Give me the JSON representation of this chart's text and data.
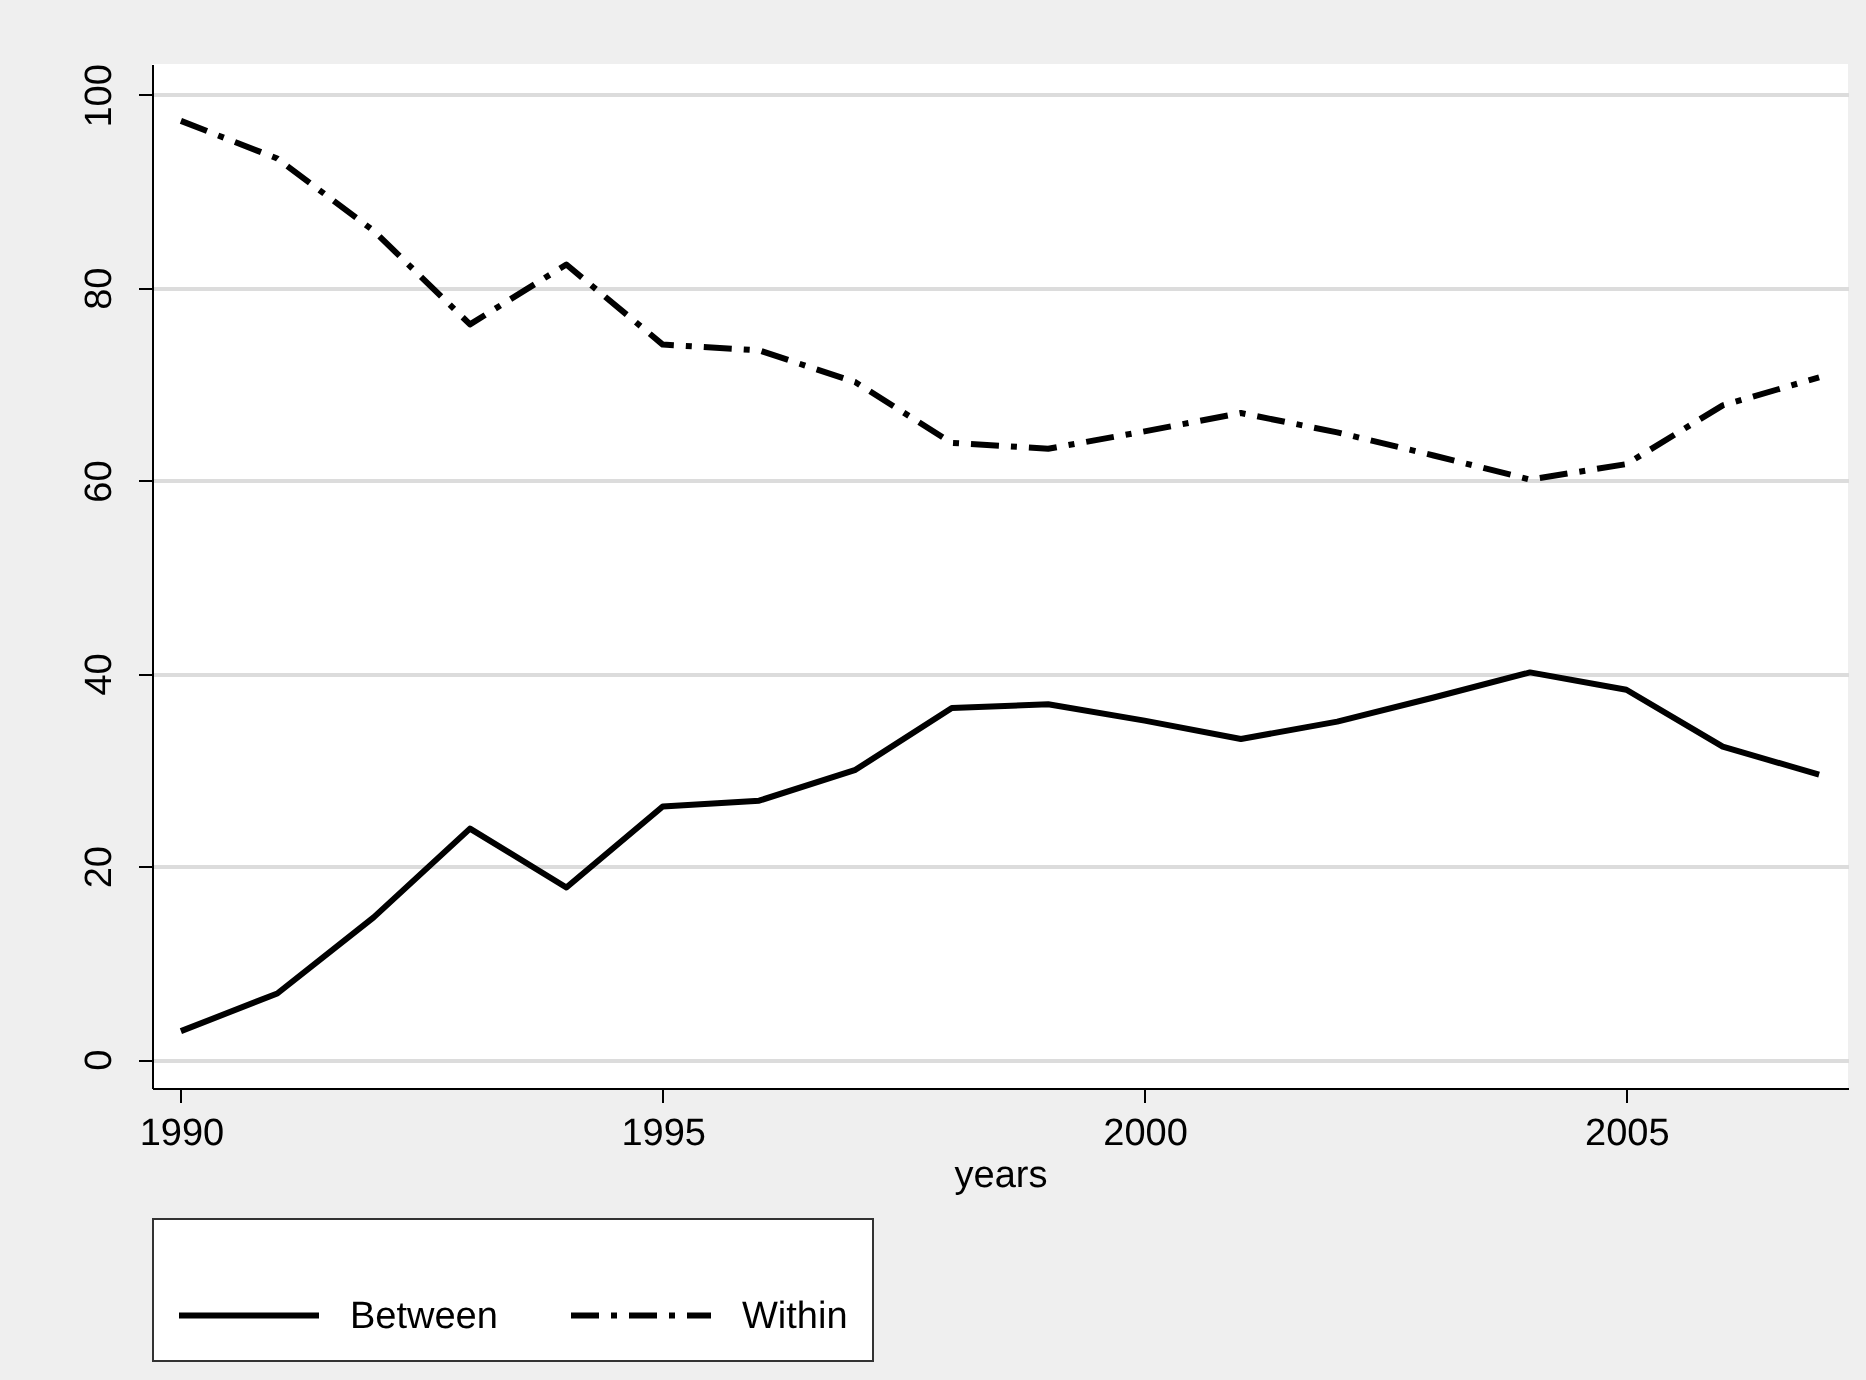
{
  "chart_data": {
    "type": "line",
    "xlabel": "years",
    "x": [
      1990,
      1991,
      1992,
      1993,
      1994,
      1995,
      1996,
      1997,
      1998,
      1999,
      2000,
      2001,
      2002,
      2003,
      2004,
      2005,
      2006,
      2007
    ],
    "series": [
      {
        "name": "Between",
        "color": "#000000",
        "line_style": "solid",
        "values": [
          2.9,
          6.8,
          14.7,
          23.9,
          17.8,
          26.2,
          26.8,
          30.0,
          36.4,
          36.8,
          35.1,
          33.2,
          35.0,
          37.5,
          40.1,
          38.3,
          32.4,
          29.5
        ]
      },
      {
        "name": "Within",
        "color": "#000000",
        "line_style": "dashdot",
        "values": [
          97.3,
          93.4,
          85.9,
          76.2,
          82.4,
          74.1,
          73.5,
          70.2,
          63.9,
          63.3,
          65.1,
          67.0,
          65.0,
          62.6,
          60.1,
          61.7,
          67.8,
          70.7
        ]
      }
    ],
    "xlim": [
      1989.7,
      2007.3
    ],
    "xticks": [
      1990,
      1995,
      2000,
      2005
    ],
    "ylim": [
      -3,
      103.2
    ],
    "yticks": [
      0,
      20,
      40,
      60,
      80,
      100
    ],
    "grid": "y",
    "legend": "bottom",
    "marker": "none"
  }
}
